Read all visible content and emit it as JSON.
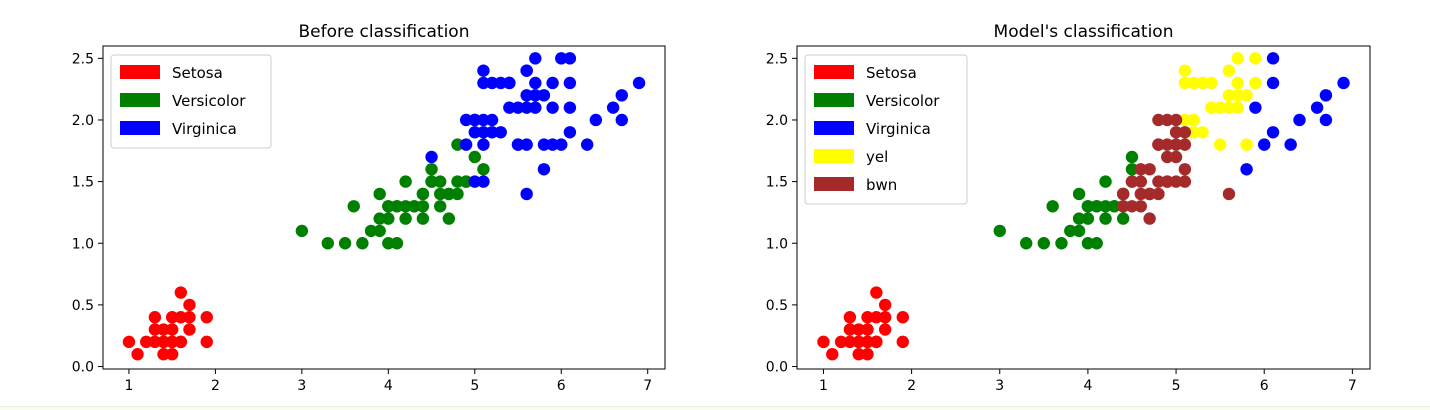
{
  "chart_data": [
    {
      "type": "scatter",
      "title": "Before classification",
      "xlim": [
        0.7,
        7.2
      ],
      "ylim": [
        -0.02,
        2.6
      ],
      "xticks": [
        1,
        2,
        3,
        4,
        5,
        6,
        7
      ],
      "yticks": [
        0.0,
        0.5,
        1.0,
        1.5,
        2.0,
        2.5
      ],
      "xtick_labels": [
        "1",
        "2",
        "3",
        "4",
        "5",
        "6",
        "7"
      ],
      "ytick_labels": [
        "0.0",
        "0.5",
        "1.0",
        "1.5",
        "2.0",
        "2.5"
      ],
      "grid": false,
      "legend_position": "top-left",
      "series": [
        {
          "name": "Setosa",
          "color": "#ff0000",
          "points": [
            [
              1.4,
              0.2
            ],
            [
              1.3,
              0.2
            ],
            [
              1.5,
              0.2
            ],
            [
              1.7,
              0.4
            ],
            [
              1.4,
              0.3
            ],
            [
              1.5,
              0.1
            ],
            [
              1.6,
              0.2
            ],
            [
              1.1,
              0.1
            ],
            [
              1.2,
              0.2
            ],
            [
              1.5,
              0.4
            ],
            [
              1.3,
              0.4
            ],
            [
              1.7,
              0.3
            ],
            [
              1.5,
              0.3
            ],
            [
              1.0,
              0.2
            ],
            [
              1.7,
              0.5
            ],
            [
              1.9,
              0.2
            ],
            [
              1.6,
              0.4
            ],
            [
              1.4,
              0.1
            ],
            [
              1.6,
              0.6
            ],
            [
              1.9,
              0.4
            ],
            [
              1.6,
              0.2
            ],
            [
              1.3,
              0.3
            ],
            [
              1.5,
              0.2
            ],
            [
              1.4,
              0.2
            ]
          ]
        },
        {
          "name": "Versicolor",
          "color": "#008000",
          "points": [
            [
              4.7,
              1.4
            ],
            [
              4.5,
              1.5
            ],
            [
              4.9,
              1.5
            ],
            [
              4.0,
              1.3
            ],
            [
              4.6,
              1.5
            ],
            [
              3.3,
              1.0
            ],
            [
              4.6,
              1.3
            ],
            [
              3.9,
              1.4
            ],
            [
              3.5,
              1.0
            ],
            [
              4.2,
              1.5
            ],
            [
              4.0,
              1.0
            ],
            [
              4.7,
              1.4
            ],
            [
              3.6,
              1.3
            ],
            [
              4.4,
              1.4
            ],
            [
              4.5,
              1.5
            ],
            [
              4.1,
              1.0
            ],
            [
              3.9,
              1.1
            ],
            [
              4.8,
              1.8
            ],
            [
              4.9,
              1.5
            ],
            [
              4.7,
              1.2
            ],
            [
              4.3,
              1.3
            ],
            [
              4.4,
              1.4
            ],
            [
              4.8,
              1.4
            ],
            [
              5.0,
              1.7
            ],
            [
              3.8,
              1.1
            ],
            [
              3.7,
              1.0
            ],
            [
              5.1,
              1.6
            ],
            [
              4.5,
              1.6
            ],
            [
              4.4,
              1.3
            ],
            [
              4.1,
              1.3
            ],
            [
              4.0,
              1.2
            ],
            [
              4.4,
              1.2
            ],
            [
              4.6,
              1.4
            ],
            [
              4.0,
              1.3
            ],
            [
              3.0,
              1.1
            ],
            [
              4.2,
              1.3
            ],
            [
              4.2,
              1.2
            ],
            [
              4.3,
              1.3
            ],
            [
              3.9,
              1.2
            ],
            [
              4.1,
              1.3
            ],
            [
              4.8,
              1.5
            ]
          ]
        },
        {
          "name": "Virginica",
          "color": "#0000ff",
          "points": [
            [
              6.0,
              2.5
            ],
            [
              5.1,
              1.9
            ],
            [
              5.9,
              2.1
            ],
            [
              5.6,
              1.8
            ],
            [
              5.8,
              2.2
            ],
            [
              6.6,
              2.1
            ],
            [
              4.5,
              1.7
            ],
            [
              6.3,
              1.8
            ],
            [
              5.8,
              1.8
            ],
            [
              6.1,
              2.5
            ],
            [
              5.1,
              2.0
            ],
            [
              5.3,
              1.9
            ],
            [
              5.5,
              2.1
            ],
            [
              5.0,
              2.0
            ],
            [
              5.1,
              2.4
            ],
            [
              5.3,
              2.3
            ],
            [
              5.5,
              1.8
            ],
            [
              6.7,
              2.2
            ],
            [
              6.9,
              2.3
            ],
            [
              5.0,
              1.5
            ],
            [
              5.7,
              2.3
            ],
            [
              4.9,
              2.0
            ],
            [
              6.7,
              2.0
            ],
            [
              4.9,
              1.8
            ],
            [
              5.7,
              2.1
            ],
            [
              6.0,
              1.8
            ],
            [
              5.6,
              2.1
            ],
            [
              5.8,
              1.6
            ],
            [
              6.1,
              1.9
            ],
            [
              6.4,
              2.0
            ],
            [
              5.6,
              2.2
            ],
            [
              5.1,
              1.5
            ],
            [
              5.6,
              1.4
            ],
            [
              6.1,
              2.3
            ],
            [
              5.6,
              2.4
            ],
            [
              5.5,
              1.8
            ],
            [
              5.4,
              2.1
            ],
            [
              5.4,
              2.3
            ],
            [
              5.1,
              2.3
            ],
            [
              5.9,
              2.3
            ],
            [
              5.7,
              2.5
            ],
            [
              5.2,
              2.3
            ],
            [
              5.0,
              1.9
            ],
            [
              5.2,
              2.0
            ],
            [
              5.4,
              2.3
            ],
            [
              5.1,
              1.8
            ],
            [
              5.0,
              2.0
            ],
            [
              5.2,
              1.9
            ],
            [
              5.7,
              2.2
            ],
            [
              5.9,
              1.8
            ],
            [
              6.1,
              2.1
            ],
            [
              5.6,
              2.4
            ]
          ]
        }
      ]
    },
    {
      "type": "scatter",
      "title": "Model's classification",
      "xlim": [
        0.7,
        7.2
      ],
      "ylim": [
        -0.02,
        2.6
      ],
      "xticks": [
        1,
        2,
        3,
        4,
        5,
        6,
        7
      ],
      "yticks": [
        0.0,
        0.5,
        1.0,
        1.5,
        2.0,
        2.5
      ],
      "xtick_labels": [
        "1",
        "2",
        "3",
        "4",
        "5",
        "6",
        "7"
      ],
      "ytick_labels": [
        "0.0",
        "0.5",
        "1.0",
        "1.5",
        "2.0",
        "2.5"
      ],
      "grid": false,
      "legend_position": "top-left",
      "series": [
        {
          "name": "Setosa",
          "color": "#ff0000",
          "points": [
            [
              1.4,
              0.2
            ],
            [
              1.3,
              0.2
            ],
            [
              1.5,
              0.2
            ],
            [
              1.7,
              0.4
            ],
            [
              1.4,
              0.3
            ],
            [
              1.5,
              0.1
            ],
            [
              1.6,
              0.2
            ],
            [
              1.1,
              0.1
            ],
            [
              1.2,
              0.2
            ],
            [
              1.5,
              0.4
            ],
            [
              1.3,
              0.4
            ],
            [
              1.7,
              0.3
            ],
            [
              1.5,
              0.3
            ],
            [
              1.0,
              0.2
            ],
            [
              1.7,
              0.5
            ],
            [
              1.9,
              0.2
            ],
            [
              1.6,
              0.4
            ],
            [
              1.4,
              0.1
            ],
            [
              1.6,
              0.6
            ],
            [
              1.9,
              0.4
            ],
            [
              1.6,
              0.2
            ],
            [
              1.3,
              0.3
            ],
            [
              1.5,
              0.2
            ],
            [
              1.4,
              0.2
            ]
          ]
        },
        {
          "name": "Versicolor",
          "color": "#008000",
          "points": [
            [
              4.5,
              1.5
            ],
            [
              4.0,
              1.3
            ],
            [
              3.3,
              1.0
            ],
            [
              3.9,
              1.4
            ],
            [
              3.5,
              1.0
            ],
            [
              4.2,
              1.5
            ],
            [
              4.0,
              1.0
            ],
            [
              3.6,
              1.3
            ],
            [
              4.4,
              1.4
            ],
            [
              4.1,
              1.0
            ],
            [
              3.9,
              1.1
            ],
            [
              4.3,
              1.3
            ],
            [
              4.4,
              1.4
            ],
            [
              3.8,
              1.1
            ],
            [
              3.7,
              1.0
            ],
            [
              4.5,
              1.7
            ],
            [
              4.4,
              1.3
            ],
            [
              4.1,
              1.3
            ],
            [
              4.0,
              1.2
            ],
            [
              4.4,
              1.2
            ],
            [
              4.0,
              1.3
            ],
            [
              3.0,
              1.1
            ],
            [
              4.2,
              1.3
            ],
            [
              4.2,
              1.2
            ],
            [
              4.3,
              1.3
            ],
            [
              3.9,
              1.2
            ],
            [
              4.1,
              1.3
            ],
            [
              4.5,
              1.6
            ]
          ]
        },
        {
          "name": "Virginica",
          "color": "#0000ff",
          "points": [
            [
              6.1,
              2.5
            ],
            [
              6.6,
              2.1
            ],
            [
              6.3,
              1.8
            ],
            [
              6.7,
              2.2
            ],
            [
              6.9,
              2.3
            ],
            [
              6.7,
              2.0
            ],
            [
              6.0,
              1.8
            ],
            [
              5.8,
              1.6
            ],
            [
              6.1,
              1.9
            ],
            [
              6.4,
              2.0
            ],
            [
              6.1,
              2.3
            ],
            [
              5.9,
              2.1
            ]
          ]
        },
        {
          "name": "yel",
          "color": "#ffff00",
          "points": [
            [
              5.9,
              2.5
            ],
            [
              5.1,
              1.9
            ],
            [
              5.8,
              2.2
            ],
            [
              5.8,
              1.8
            ],
            [
              5.1,
              2.0
            ],
            [
              5.3,
              1.9
            ],
            [
              5.5,
              2.1
            ],
            [
              5.1,
              2.4
            ],
            [
              5.3,
              2.3
            ],
            [
              5.5,
              1.8
            ],
            [
              5.7,
              2.3
            ],
            [
              5.7,
              2.1
            ],
            [
              5.6,
              2.1
            ],
            [
              5.6,
              2.2
            ],
            [
              5.6,
              2.4
            ],
            [
              5.4,
              2.1
            ],
            [
              5.4,
              2.3
            ],
            [
              5.1,
              2.3
            ],
            [
              5.9,
              2.3
            ],
            [
              5.7,
              2.5
            ],
            [
              5.2,
              2.3
            ],
            [
              5.2,
              2.0
            ],
            [
              5.7,
              2.2
            ],
            [
              5.1,
              1.8
            ],
            [
              5.2,
              1.9
            ],
            [
              5.3,
              2.3
            ]
          ]
        },
        {
          "name": "bwn",
          "color": "#a52a2a",
          "points": [
            [
              4.7,
              1.4
            ],
            [
              4.9,
              1.5
            ],
            [
              4.6,
              1.5
            ],
            [
              4.6,
              1.3
            ],
            [
              4.7,
              1.4
            ],
            [
              4.5,
              1.5
            ],
            [
              4.8,
              1.8
            ],
            [
              4.9,
              1.5
            ],
            [
              4.7,
              1.2
            ],
            [
              4.8,
              1.4
            ],
            [
              5.0,
              1.7
            ],
            [
              5.1,
              1.6
            ],
            [
              4.6,
              1.4
            ],
            [
              4.8,
              1.5
            ],
            [
              5.0,
              1.5
            ],
            [
              4.9,
              2.0
            ],
            [
              5.0,
              2.0
            ],
            [
              4.9,
              1.8
            ],
            [
              5.1,
              1.5
            ],
            [
              5.6,
              1.4
            ],
            [
              5.0,
              1.9
            ],
            [
              5.1,
              1.8
            ],
            [
              4.8,
              1.8
            ],
            [
              4.5,
              1.3
            ],
            [
              4.4,
              1.3
            ],
            [
              4.6,
              1.6
            ],
            [
              4.7,
              1.6
            ],
            [
              5.1,
              1.9
            ],
            [
              4.9,
              1.7
            ],
            [
              5.0,
              1.8
            ],
            [
              4.4,
              1.4
            ],
            [
              4.8,
              2.0
            ]
          ]
        }
      ]
    }
  ]
}
